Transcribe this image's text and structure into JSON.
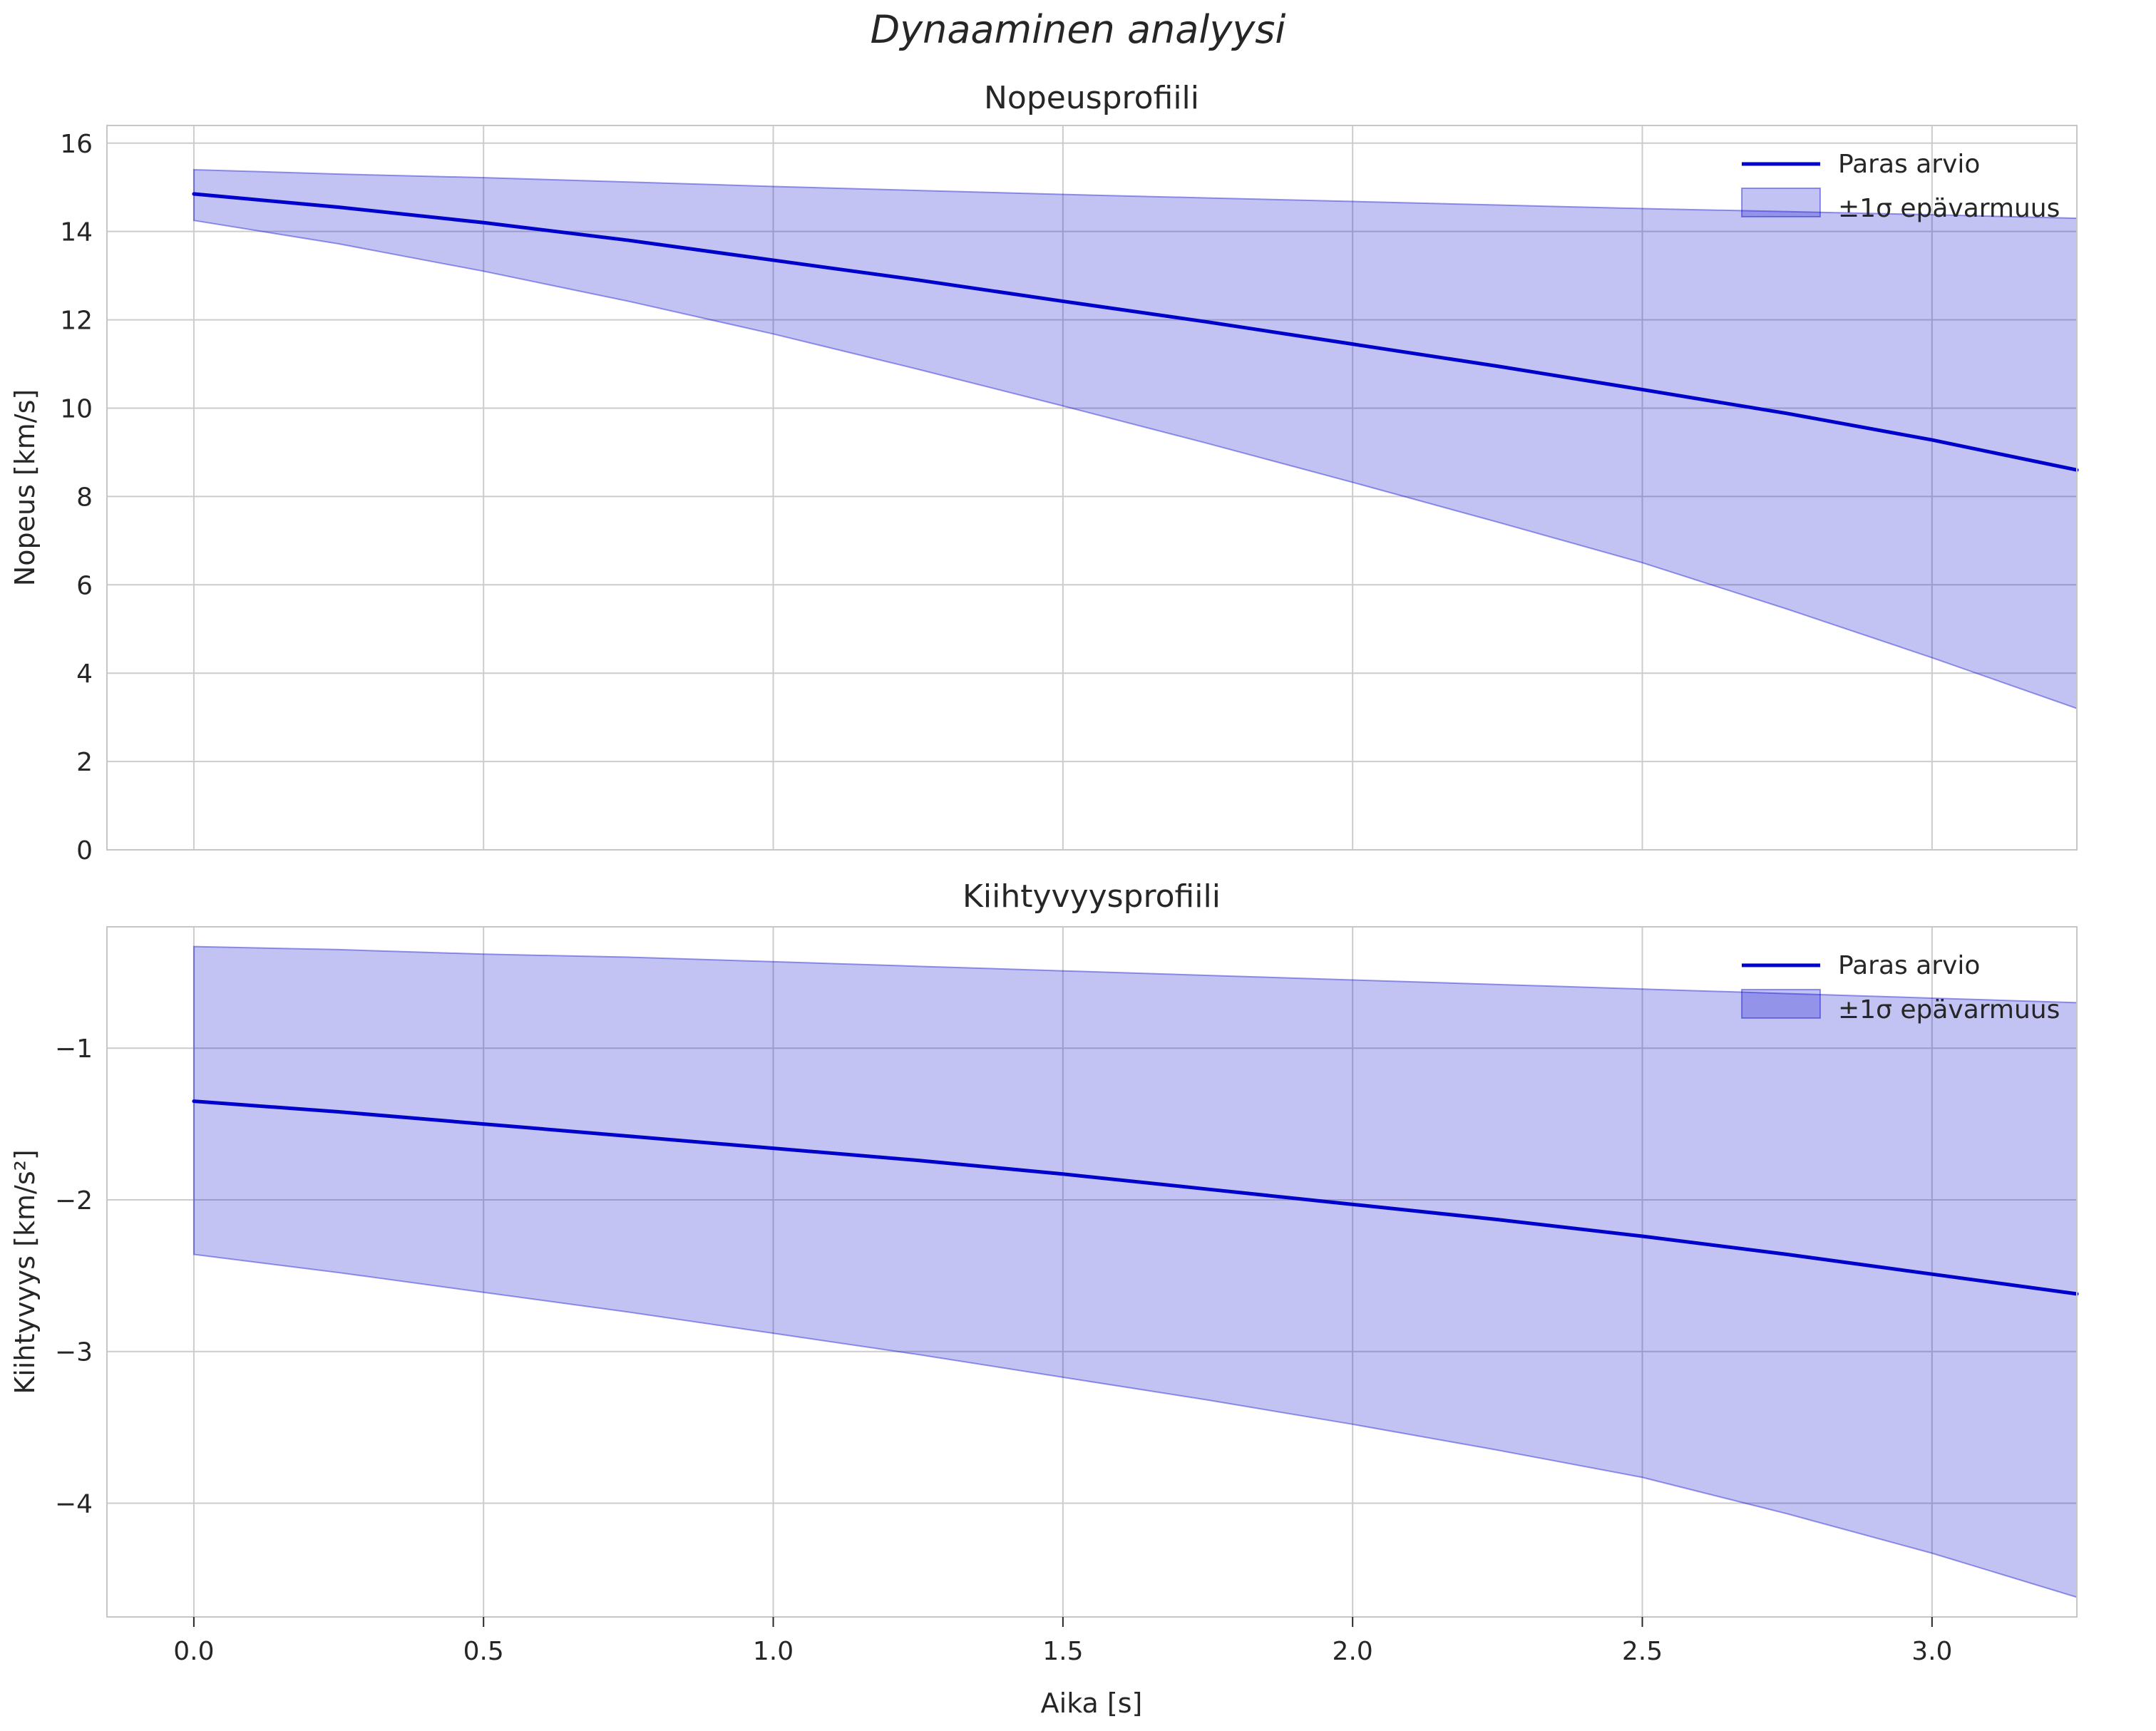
{
  "figure": {
    "suptitle": "Dynaaminen analyysi",
    "xlabel": "Aika [s]"
  },
  "style": {
    "line_color": "#0000cd",
    "band_fill": "rgba(0,0,205,0.24)",
    "band_edge": "rgba(0,0,205,0.38)",
    "grid_color": "#cccccc",
    "frame_color": "#c6c6c6",
    "text_color": "#262626",
    "background": "#ffffff"
  },
  "chart_data": [
    {
      "type": "line",
      "title": "Nopeusprofiili",
      "xlabel": "",
      "ylabel": "Nopeus [km/s]",
      "xlim": [
        -0.15,
        3.25
      ],
      "ylim": [
        0,
        16.4
      ],
      "grid": true,
      "legend_position": "upper right",
      "legend": [
        "Paras arvio",
        "±1σ epävarmuus"
      ],
      "x": [
        0,
        0.25,
        0.5,
        0.75,
        1.0,
        1.25,
        1.5,
        1.75,
        2.0,
        2.25,
        2.5,
        2.75,
        3.0,
        3.25
      ],
      "series": [
        {
          "name": "Paras arvio",
          "values": [
            14.85,
            14.55,
            14.2,
            13.8,
            13.35,
            12.9,
            12.42,
            11.95,
            11.45,
            10.95,
            10.42,
            9.88,
            9.28,
            8.6
          ]
        }
      ],
      "band": {
        "name": "±1σ epävarmuus",
        "upper": [
          15.4,
          15.3,
          15.22,
          15.12,
          15.02,
          14.93,
          14.84,
          14.76,
          14.68,
          14.6,
          14.52,
          14.45,
          14.38,
          14.3
        ],
        "lower": [
          14.25,
          13.72,
          13.1,
          12.42,
          11.68,
          10.88,
          10.05,
          9.2,
          8.32,
          7.42,
          6.5,
          5.45,
          4.35,
          3.2
        ]
      },
      "xticks": [
        0,
        0.5,
        1,
        1.5,
        2,
        2.5,
        3
      ],
      "xtick_labels": [],
      "yticks": [
        0,
        2,
        4,
        6,
        8,
        10,
        12,
        14,
        16
      ],
      "ytick_labels": [
        "0",
        "2",
        "4",
        "6",
        "8",
        "10",
        "12",
        "14",
        "16"
      ]
    },
    {
      "type": "line",
      "title": "Kiihtyvyysprofiili",
      "xlabel": "Aika [s]",
      "ylabel": "Kiihtyvyys [km/s²]",
      "xlim": [
        -0.15,
        3.25
      ],
      "ylim": [
        -4.75,
        -0.2
      ],
      "grid": true,
      "legend_position": "upper right",
      "legend": [
        "Paras arvio",
        "±1σ epävarmuus"
      ],
      "x": [
        0,
        0.25,
        0.5,
        0.75,
        1.0,
        1.25,
        1.5,
        1.75,
        2.0,
        2.25,
        2.5,
        2.75,
        3.0,
        3.25
      ],
      "series": [
        {
          "name": "Paras arvio",
          "values": [
            -1.35,
            -1.42,
            -1.5,
            -1.58,
            -1.66,
            -1.74,
            -1.83,
            -1.93,
            -2.03,
            -2.13,
            -2.24,
            -2.36,
            -2.49,
            -2.62
          ]
        }
      ],
      "band": {
        "name": "±1σ epävarmuus",
        "upper": [
          -0.33,
          -0.35,
          -0.38,
          -0.4,
          -0.43,
          -0.46,
          -0.49,
          -0.52,
          -0.55,
          -0.58,
          -0.61,
          -0.64,
          -0.67,
          -0.7
        ],
        "lower": [
          -2.36,
          -2.48,
          -2.61,
          -2.74,
          -2.88,
          -3.02,
          -3.17,
          -3.32,
          -3.48,
          -3.65,
          -3.83,
          -4.07,
          -4.33,
          -4.62
        ]
      },
      "xticks": [
        0,
        0.5,
        1,
        1.5,
        2,
        2.5,
        3
      ],
      "xtick_labels": [
        "0.0",
        "0.5",
        "1.0",
        "1.5",
        "2.0",
        "2.5",
        "3.0"
      ],
      "yticks": [
        -1,
        -2,
        -3,
        -4
      ],
      "ytick_labels": [
        "−1",
        "−2",
        "−3",
        "−4"
      ]
    }
  ]
}
